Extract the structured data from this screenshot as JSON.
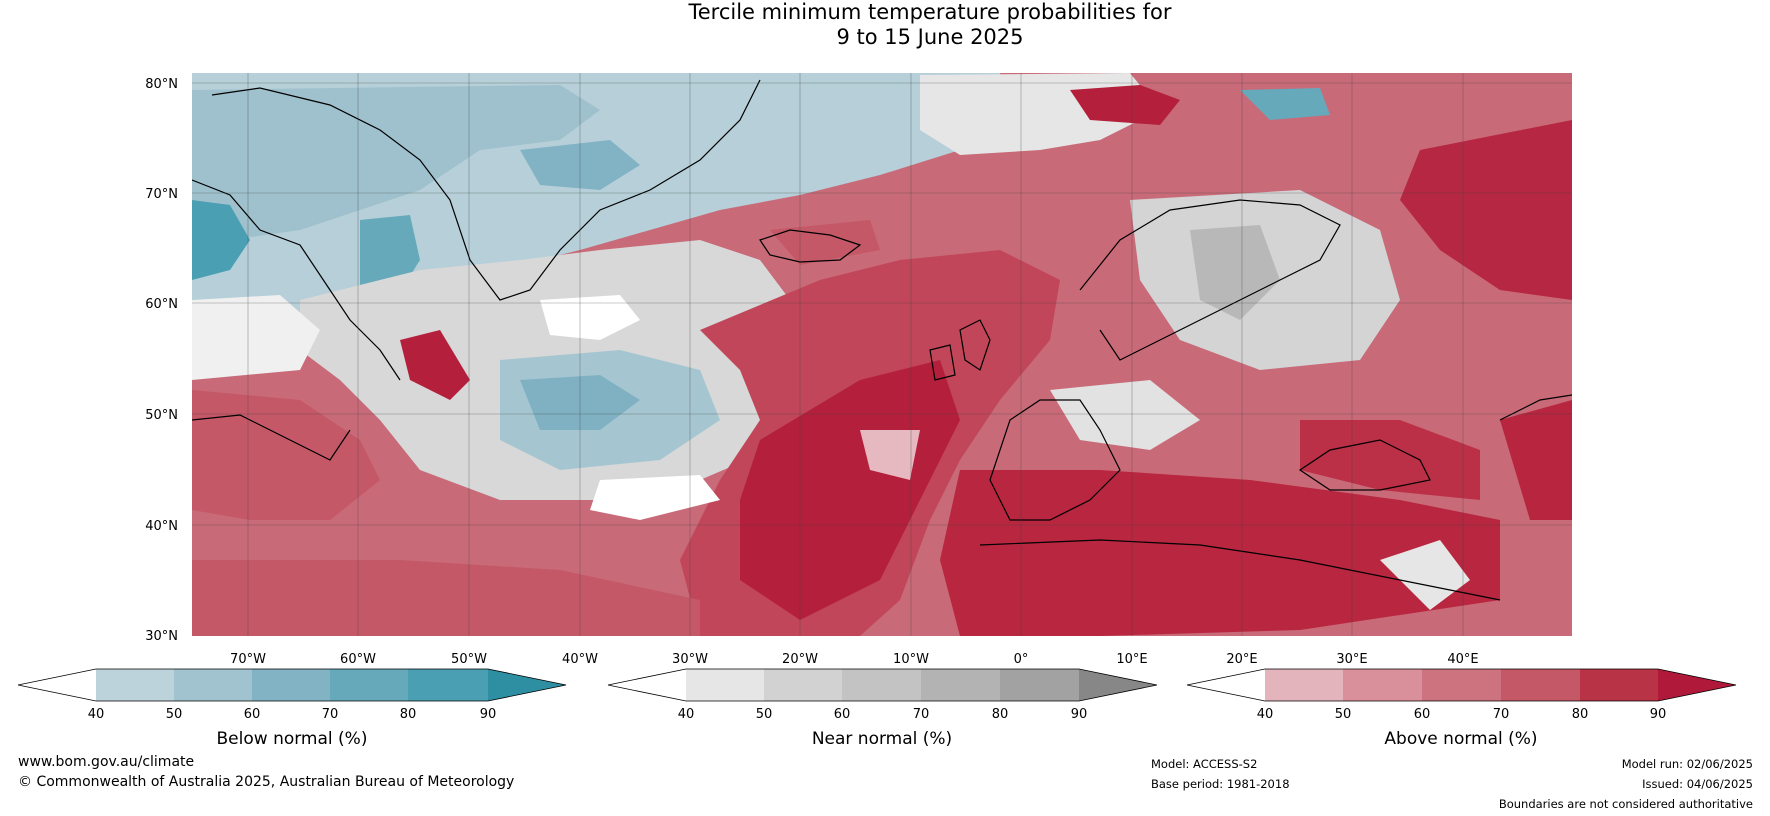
{
  "title_line1": "Tercile minimum temperature probabilities for",
  "title_line2": "9 to 15 June 2025",
  "map": {
    "lat_labels": [
      "80°N",
      "70°N",
      "60°N",
      "50°N",
      "40°N",
      "30°N"
    ],
    "lon_labels": [
      "70°W",
      "60°W",
      "50°W",
      "40°W",
      "30°W",
      "20°W",
      "10°W",
      "0°",
      "10°E",
      "20°E",
      "30°E",
      "40°E"
    ]
  },
  "colorbars": [
    {
      "label": "Below normal (%)",
      "ticks": [
        "40",
        "50",
        "60",
        "70",
        "80",
        "90"
      ],
      "colors": [
        "#ffffff",
        "#bcd3db",
        "#a0c3cf",
        "#82b3c4",
        "#66a9ba",
        "#4a9fb3",
        "#2e8fa3"
      ]
    },
    {
      "label": "Near normal (%)",
      "ticks": [
        "40",
        "50",
        "60",
        "70",
        "80",
        "90"
      ],
      "colors": [
        "#ffffff",
        "#e6e6e6",
        "#d2d2d2",
        "#c3c3c3",
        "#b3b3b3",
        "#a2a2a2",
        "#878787"
      ]
    },
    {
      "label": "Above normal (%)",
      "ticks": [
        "40",
        "50",
        "60",
        "70",
        "80",
        "90"
      ],
      "colors": [
        "#ffffff",
        "#e4b4bd",
        "#d9909b",
        "#cd737f",
        "#c45867",
        "#b93347",
        "#b0193a"
      ]
    }
  ],
  "footer": {
    "website": "www.bom.gov.au/climate",
    "copyright": "© Commonwealth of Australia 2025, Australian Bureau of Meteorology",
    "model": "Model: ACCESS-S2",
    "base_period": "Base period: 1981-2018",
    "model_run": "Model run: 02/06/2025",
    "issued": "Issued: 04/06/2025",
    "disclaimer": "Boundaries are not considered authoritative"
  }
}
